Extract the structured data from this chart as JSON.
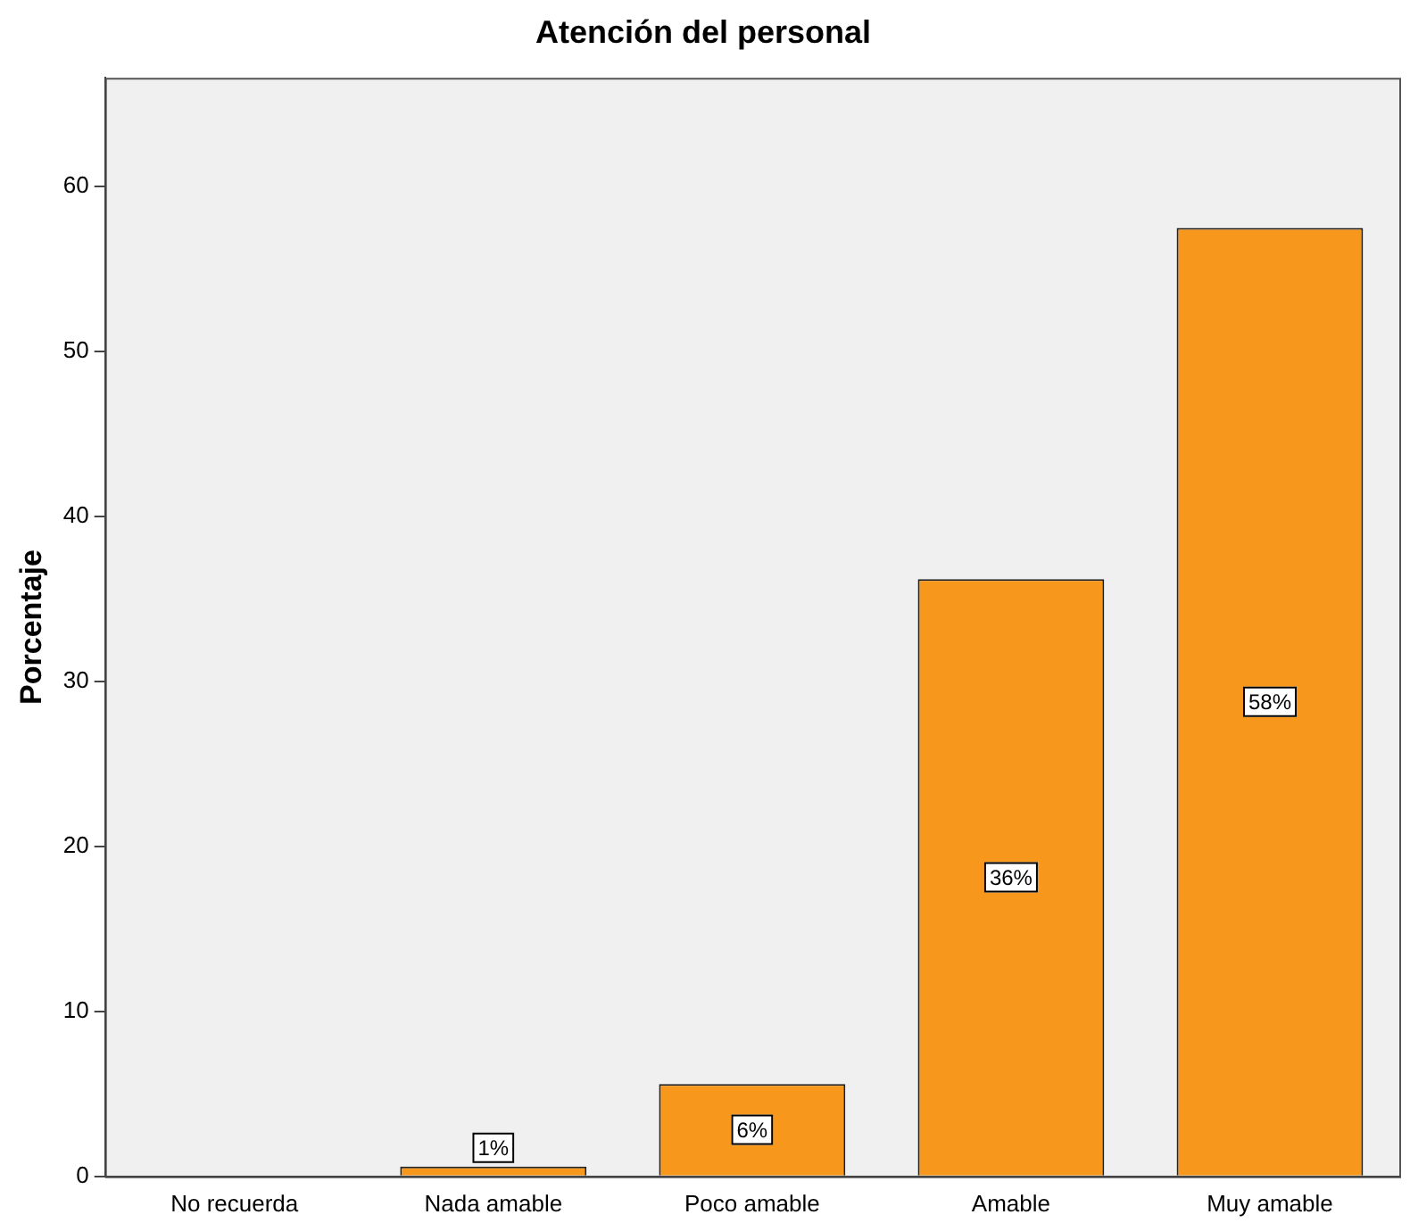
{
  "chart_data": {
    "type": "bar",
    "title": "Atención del personal",
    "ylabel": "Porcentaje",
    "categories": [
      "No recuerda",
      "Nada amable",
      "Poco amable",
      "Amable",
      "Muy amable"
    ],
    "values": [
      0,
      0.6,
      5.6,
      36.2,
      57.5
    ],
    "value_labels": [
      null,
      "1%",
      "6%",
      "36%",
      "58%"
    ],
    "color": "#f7981d",
    "ylim": [
      0,
      66.6
    ],
    "yticks": [
      0,
      10,
      20,
      30,
      40,
      50,
      60
    ],
    "grid": false,
    "legend": false
  }
}
